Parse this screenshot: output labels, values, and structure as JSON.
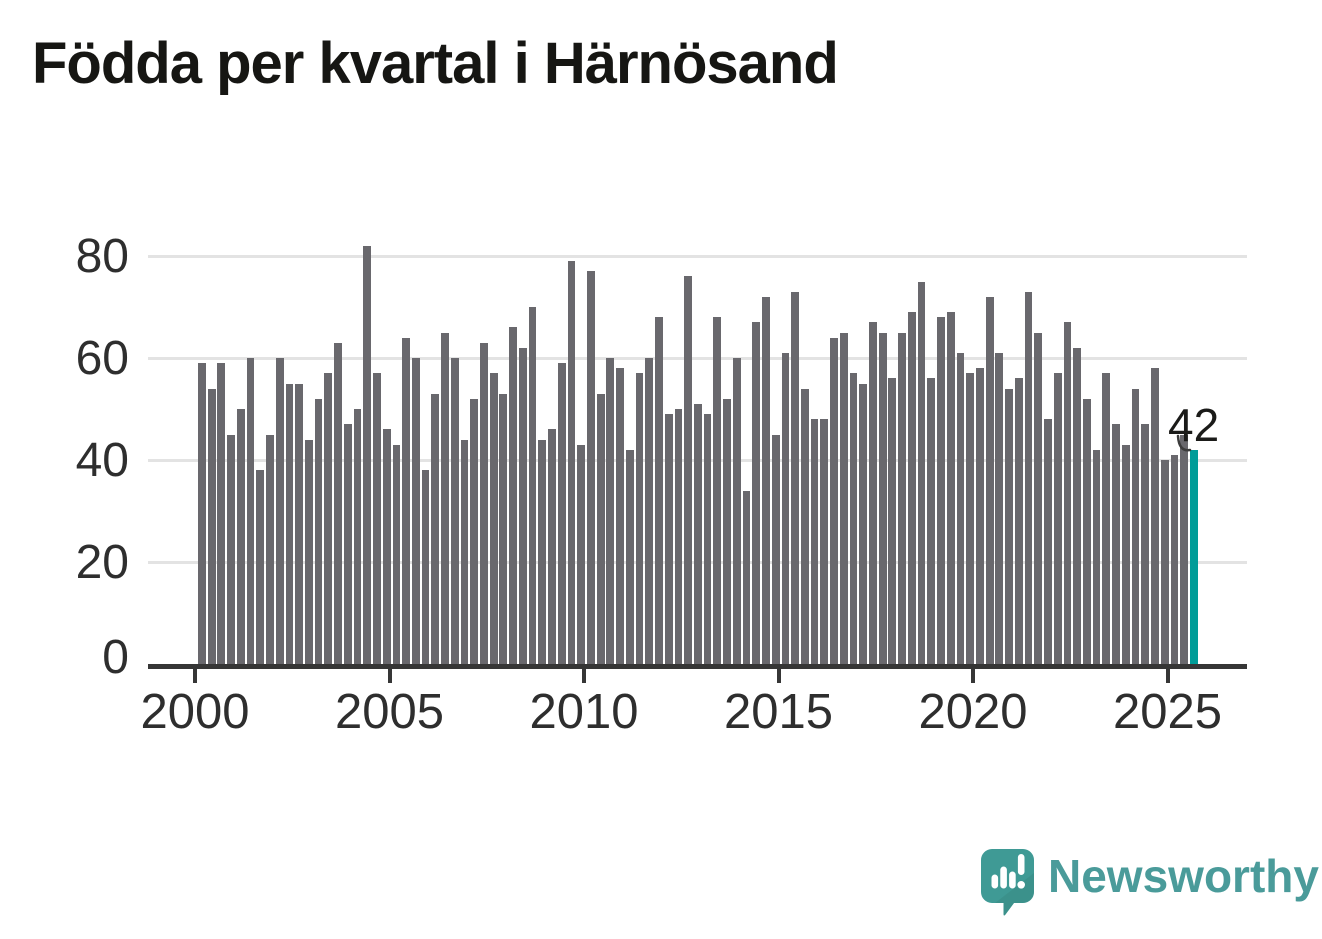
{
  "title": "Födda per kvartal i Härnösand",
  "annotation": {
    "value_label": "42"
  },
  "branding": {
    "name": "Newsworthy",
    "icon": "speech-bubble-bar-chart-icon"
  },
  "colors": {
    "bar": "#69686d",
    "highlight": "#009c98",
    "grid": "#e3e3e3",
    "axis": "#363636",
    "tick_text": "#2e2e2e",
    "title_text": "#161613",
    "annotation_text": "#1b1b19",
    "brand_teal": "#4a9b9a",
    "brand_icon_teal": "#3f9a95"
  },
  "chart_data": {
    "type": "bar",
    "title": "Födda per kvartal i Härnösand",
    "xlabel": "",
    "ylabel": "",
    "frequency": "quarterly",
    "start_period": "2000-Q1",
    "end_period": "2025-Q3",
    "x_tick_labels": [
      "2000",
      "2005",
      "2010",
      "2015",
      "2020",
      "2025"
    ],
    "y_tick_values": [
      0,
      20,
      40,
      60,
      80
    ],
    "ylim": [
      0,
      86
    ],
    "grid": "horizontal",
    "legend": "none",
    "highlight": {
      "index": 102,
      "period": "2025-Q3",
      "value": 42,
      "label": "42"
    },
    "values": [
      59,
      54,
      59,
      45,
      50,
      60,
      38,
      45,
      60,
      55,
      55,
      44,
      52,
      57,
      63,
      47,
      50,
      82,
      57,
      46,
      43,
      64,
      60,
      38,
      53,
      65,
      60,
      44,
      52,
      63,
      57,
      53,
      66,
      62,
      70,
      44,
      46,
      59,
      79,
      43,
      77,
      53,
      60,
      58,
      42,
      57,
      60,
      68,
      49,
      50,
      76,
      51,
      49,
      68,
      52,
      60,
      34,
      67,
      72,
      45,
      61,
      73,
      54,
      48,
      48,
      64,
      65,
      57,
      55,
      67,
      65,
      56,
      65,
      69,
      75,
      56,
      68,
      69,
      61,
      57,
      58,
      72,
      61,
      54,
      56,
      73,
      65,
      48,
      57,
      67,
      62,
      52,
      42,
      57,
      47,
      43,
      54,
      47,
      58,
      40,
      41,
      45,
      42
    ]
  }
}
